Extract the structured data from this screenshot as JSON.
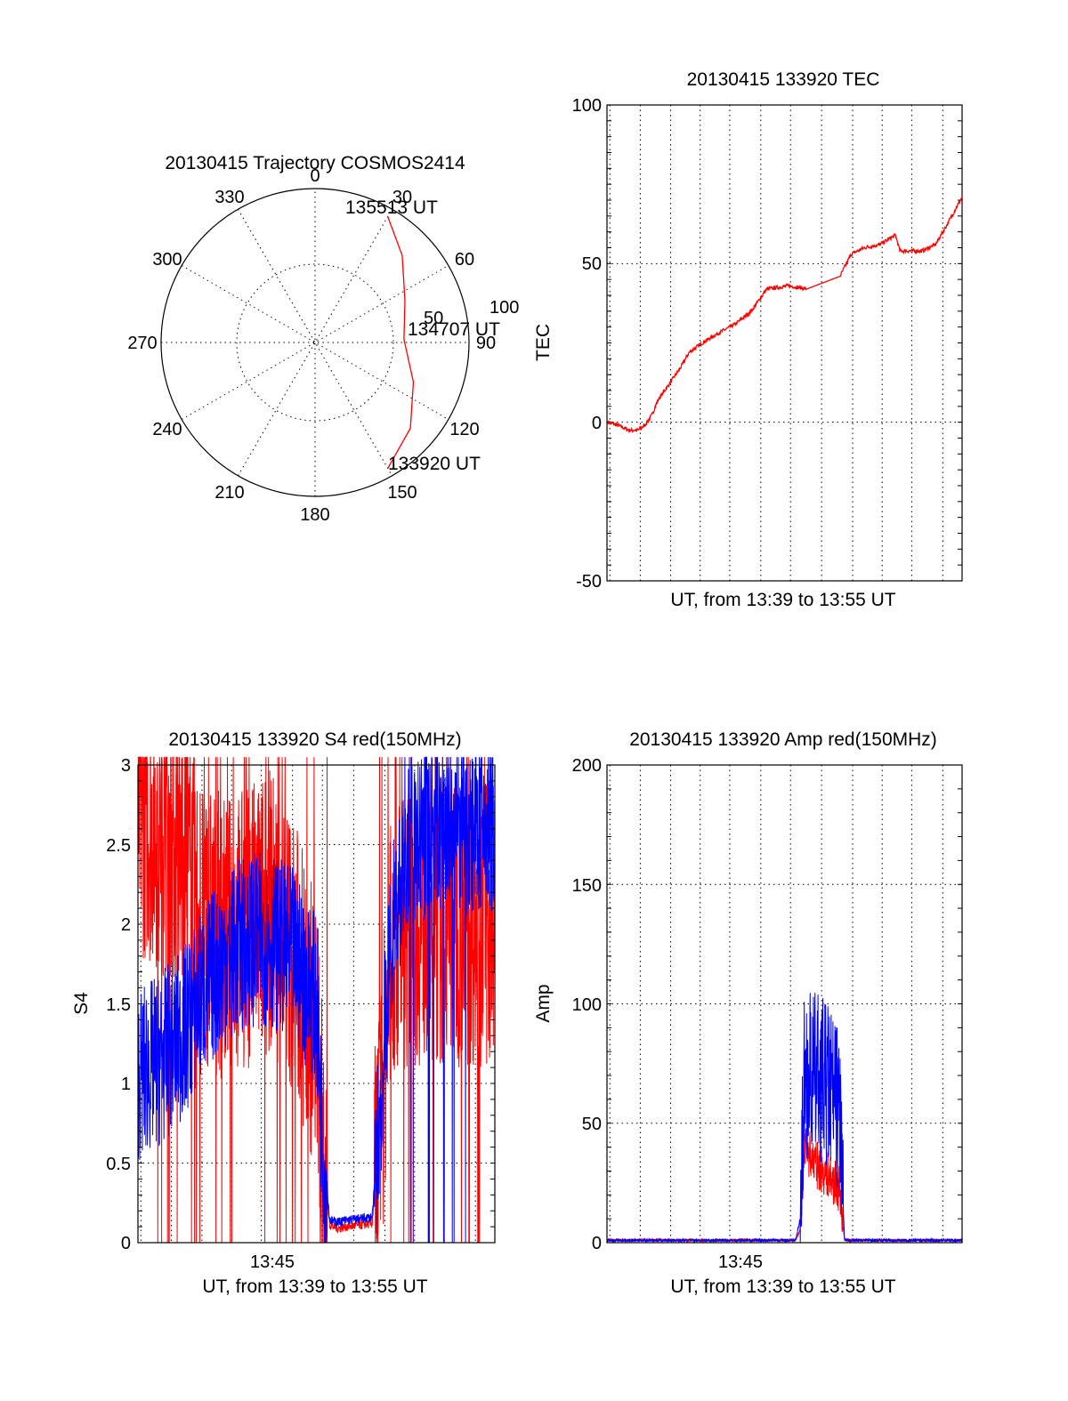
{
  "chart_data": [
    {
      "type": "polar",
      "title": "20130415 Trajectory COSMOS2414",
      "azimuth_labels": [
        "0",
        "30",
        "60",
        "90",
        "120",
        "150",
        "180",
        "210",
        "240",
        "270",
        "300",
        "330"
      ],
      "radial_labels": [
        "50",
        "100"
      ],
      "series": [
        {
          "color": "#ff0000",
          "points": [
            {
              "time": "133920",
              "az": 150,
              "el": 5
            },
            {
              "time": "",
              "az": 132,
              "el": 15
            },
            {
              "time": "",
              "az": 112,
              "el": 28
            },
            {
              "time": "134707",
              "az": 88,
              "el": 38
            },
            {
              "time": "",
              "az": 65,
              "el": 32
            },
            {
              "time": "",
              "az": 45,
              "el": 18
            },
            {
              "time": "135513",
              "az": 30,
              "el": 5
            }
          ]
        }
      ],
      "annotations": [
        "133920 UT",
        "134707 UT",
        "135513 UT"
      ]
    },
    {
      "type": "line",
      "title": "20130415 133920 TEC",
      "ylabel": "TEC",
      "xlabel": "UT, from 13:39 to 13:55 UT",
      "ylim": [
        -50,
        100
      ],
      "yticks": [
        "100",
        "50",
        "0",
        "-50"
      ],
      "xlim": [
        0,
        16
      ],
      "grid": true,
      "series": [
        {
          "color": "#ff0000",
          "x": [
            0.05,
            0.5,
            1.0,
            1.4,
            1.7,
            2.0,
            2.3,
            2.8,
            3.3,
            3.7,
            4.3,
            5.0,
            5.8,
            6.5,
            7.2,
            8.2,
            9.0,
            10.5,
            11.0,
            11.6,
            12.3,
            13.0,
            13.2,
            13.5,
            14.2,
            14.8,
            15.3,
            16.0
          ],
          "y": [
            0,
            -1,
            -2.5,
            -2.5,
            -1,
            2,
            7,
            12,
            17,
            22,
            25,
            28,
            31,
            35,
            42,
            43,
            42,
            46,
            53,
            55,
            56,
            59,
            54,
            54,
            54,
            56,
            62,
            71
          ]
        }
      ]
    },
    {
      "type": "line",
      "title": "20130415 133920 S4 red(150MHz)",
      "ylabel": "S4",
      "xlabel": "UT, from 13:39 to 13:55 UT",
      "xtick_labels": [
        {
          "at": 6,
          "label": "13:45"
        }
      ],
      "ylim": [
        0,
        3
      ],
      "yticks": [
        "3",
        "2.5",
        "2",
        "1.5",
        "1",
        "0.5",
        "0"
      ],
      "xlim": [
        0,
        16
      ],
      "grid": true,
      "series": [
        {
          "color": "#ff0000",
          "level_x": [
            0,
            1,
            2,
            3,
            4,
            5,
            6,
            7,
            8,
            8.3,
            8.6,
            9,
            9.3,
            10.5,
            11,
            11.4,
            12,
            13,
            14,
            15,
            16
          ],
          "level_y": [
            2.7,
            2.6,
            2.4,
            2.0,
            1.9,
            2.0,
            2.1,
            1.8,
            1.3,
            0.5,
            0.11,
            0.09,
            0.1,
            0.12,
            1.0,
            1.9,
            2.0,
            2.0,
            2.0,
            2.0,
            2.0
          ]
        },
        {
          "color": "#0000ff",
          "level_x": [
            0,
            1,
            2,
            3,
            4,
            5,
            6,
            7,
            8,
            8.3,
            8.6,
            9,
            9.3,
            10.5,
            11,
            11.4,
            12,
            13,
            14,
            15,
            16
          ],
          "level_y": [
            1.05,
            1.15,
            1.3,
            1.6,
            1.8,
            1.9,
            1.9,
            1.8,
            1.5,
            0.6,
            0.14,
            0.13,
            0.14,
            0.16,
            1.1,
            2.0,
            2.4,
            2.6,
            2.6,
            2.6,
            2.6
          ]
        }
      ]
    },
    {
      "type": "line",
      "title": "20130415 133920 Amp red(150MHz)",
      "ylabel": "Amp",
      "xlabel": "UT, from 13:39 to 13:55 UT",
      "xtick_labels": [
        {
          "at": 6,
          "label": "13:45"
        }
      ],
      "ylim": [
        0,
        200
      ],
      "yticks": [
        "200",
        "150",
        "100",
        "50",
        "0"
      ],
      "xlim": [
        0,
        16
      ],
      "grid": true,
      "series": [
        {
          "color": "#ff0000",
          "x": [
            0,
            8.5,
            8.7,
            8.9,
            9.5,
            10.0,
            10.5,
            10.7,
            11.0,
            16
          ],
          "y": [
            1,
            1,
            5,
            40,
            32,
            28,
            22,
            1,
            1,
            1
          ]
        },
        {
          "color": "#0000ff",
          "x": [
            0,
            8.5,
            8.7,
            8.9,
            9.5,
            10.0,
            10.5,
            10.7,
            11.0,
            16
          ],
          "y": [
            1,
            1,
            10,
            70,
            70,
            65,
            55,
            1,
            1,
            1
          ]
        }
      ]
    }
  ]
}
